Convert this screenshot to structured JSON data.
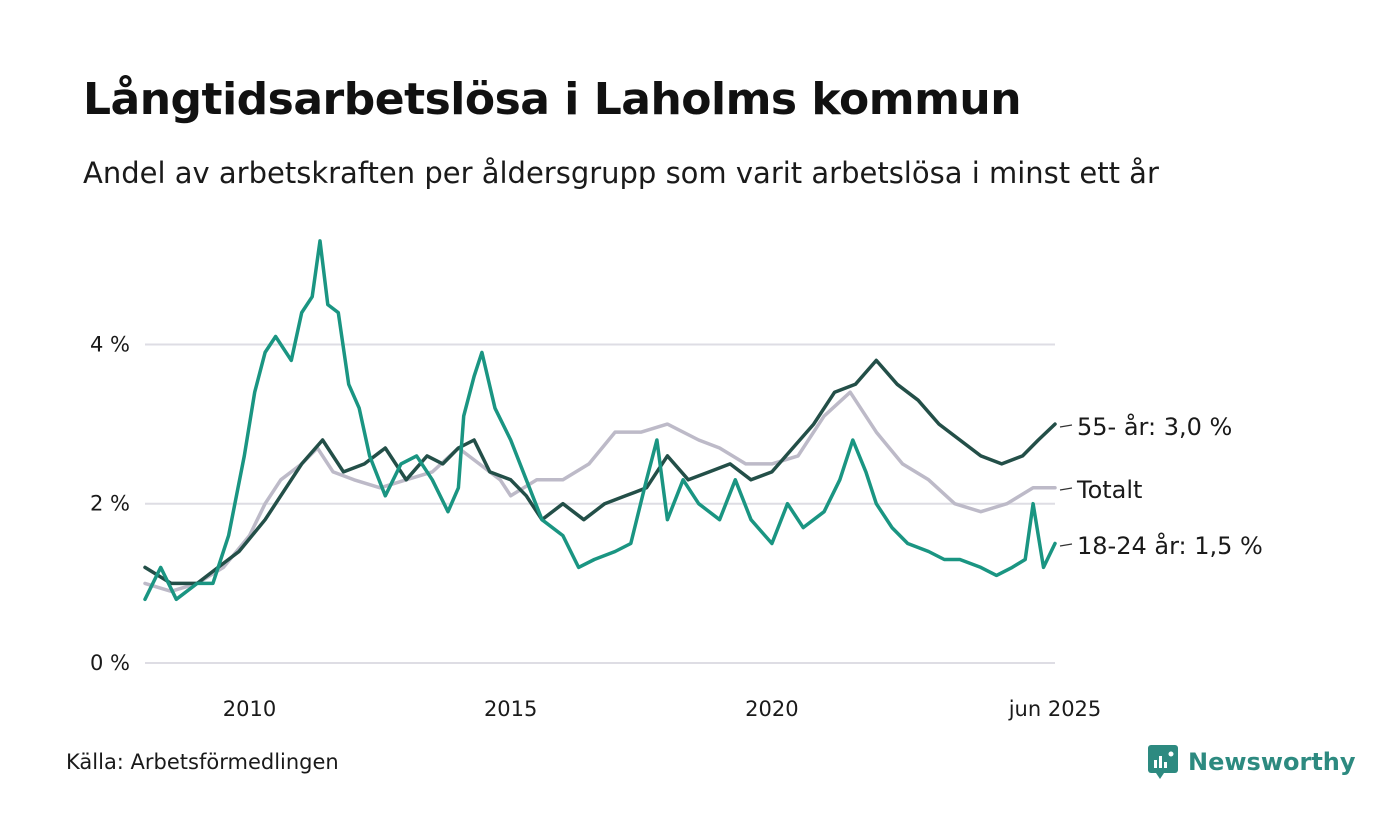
{
  "header": {
    "title": "Långtidsarbetslösa i Laholms kommun",
    "subtitle": "Andel av arbetskraften per åldersgrupp som varit arbetslösa i minst ett år"
  },
  "footer": {
    "source": "Källa: Arbetsförmedlingen",
    "brand": "Newsworthy"
  },
  "chart_data": {
    "type": "line",
    "x_start": 2008.0,
    "x_end": 2025.42,
    "ylim": [
      0,
      5.5
    ],
    "y_ticks": [
      {
        "value": 0,
        "label": "0 %"
      },
      {
        "value": 2,
        "label": "2 %"
      },
      {
        "value": 4,
        "label": "4 %"
      }
    ],
    "x_ticks": [
      {
        "value": 2010,
        "label": "2010"
      },
      {
        "value": 2015,
        "label": "2015"
      },
      {
        "value": 2020,
        "label": "2020"
      },
      {
        "value": 2025.42,
        "label": "jun 2025"
      }
    ],
    "grid": true,
    "series": [
      {
        "name": "Totalt",
        "label": "Totalt",
        "color": "#bdbac8",
        "points": [
          [
            2008.0,
            1.0
          ],
          [
            2008.5,
            0.9
          ],
          [
            2009.0,
            1.0
          ],
          [
            2009.5,
            1.2
          ],
          [
            2010.0,
            1.6
          ],
          [
            2010.3,
            2.0
          ],
          [
            2010.6,
            2.3
          ],
          [
            2011.0,
            2.5
          ],
          [
            2011.3,
            2.7
          ],
          [
            2011.6,
            2.4
          ],
          [
            2012.0,
            2.3
          ],
          [
            2012.5,
            2.2
          ],
          [
            2013.0,
            2.3
          ],
          [
            2013.5,
            2.4
          ],
          [
            2014.0,
            2.7
          ],
          [
            2014.4,
            2.5
          ],
          [
            2014.8,
            2.3
          ],
          [
            2015.0,
            2.1
          ],
          [
            2015.5,
            2.3
          ],
          [
            2016.0,
            2.3
          ],
          [
            2016.5,
            2.5
          ],
          [
            2017.0,
            2.9
          ],
          [
            2017.5,
            2.9
          ],
          [
            2018.0,
            3.0
          ],
          [
            2018.6,
            2.8
          ],
          [
            2019.0,
            2.7
          ],
          [
            2019.5,
            2.5
          ],
          [
            2020.0,
            2.5
          ],
          [
            2020.5,
            2.6
          ],
          [
            2021.0,
            3.1
          ],
          [
            2021.5,
            3.4
          ],
          [
            2022.0,
            2.9
          ],
          [
            2022.5,
            2.5
          ],
          [
            2023.0,
            2.3
          ],
          [
            2023.5,
            2.0
          ],
          [
            2024.0,
            1.9
          ],
          [
            2024.5,
            2.0
          ],
          [
            2025.0,
            2.2
          ],
          [
            2025.42,
            2.2
          ]
        ]
      },
      {
        "name": "55- år",
        "label": "55- år: 3,0 %",
        "color": "#234f48",
        "points": [
          [
            2008.0,
            1.2
          ],
          [
            2008.5,
            1.0
          ],
          [
            2009.0,
            1.0
          ],
          [
            2009.4,
            1.2
          ],
          [
            2009.8,
            1.4
          ],
          [
            2010.3,
            1.8
          ],
          [
            2010.7,
            2.2
          ],
          [
            2011.0,
            2.5
          ],
          [
            2011.4,
            2.8
          ],
          [
            2011.8,
            2.4
          ],
          [
            2012.2,
            2.5
          ],
          [
            2012.6,
            2.7
          ],
          [
            2013.0,
            2.3
          ],
          [
            2013.4,
            2.6
          ],
          [
            2013.7,
            2.5
          ],
          [
            2014.0,
            2.7
          ],
          [
            2014.3,
            2.8
          ],
          [
            2014.6,
            2.4
          ],
          [
            2015.0,
            2.3
          ],
          [
            2015.3,
            2.1
          ],
          [
            2015.6,
            1.8
          ],
          [
            2016.0,
            2.0
          ],
          [
            2016.4,
            1.8
          ],
          [
            2016.8,
            2.0
          ],
          [
            2017.2,
            2.1
          ],
          [
            2017.6,
            2.2
          ],
          [
            2018.0,
            2.6
          ],
          [
            2018.4,
            2.3
          ],
          [
            2018.8,
            2.4
          ],
          [
            2019.2,
            2.5
          ],
          [
            2019.6,
            2.3
          ],
          [
            2020.0,
            2.4
          ],
          [
            2020.4,
            2.7
          ],
          [
            2020.8,
            3.0
          ],
          [
            2021.2,
            3.4
          ],
          [
            2021.6,
            3.5
          ],
          [
            2022.0,
            3.8
          ],
          [
            2022.4,
            3.5
          ],
          [
            2022.8,
            3.3
          ],
          [
            2023.2,
            3.0
          ],
          [
            2023.6,
            2.8
          ],
          [
            2024.0,
            2.6
          ],
          [
            2024.4,
            2.5
          ],
          [
            2024.8,
            2.6
          ],
          [
            2025.1,
            2.8
          ],
          [
            2025.42,
            3.0
          ]
        ]
      },
      {
        "name": "18-24 år",
        "label": "18-24 år: 1,5 %",
        "color": "#1a9582",
        "points": [
          [
            2008.0,
            0.8
          ],
          [
            2008.3,
            1.2
          ],
          [
            2008.6,
            0.8
          ],
          [
            2009.0,
            1.0
          ],
          [
            2009.3,
            1.0
          ],
          [
            2009.6,
            1.6
          ],
          [
            2009.9,
            2.6
          ],
          [
            2010.1,
            3.4
          ],
          [
            2010.3,
            3.9
          ],
          [
            2010.5,
            4.1
          ],
          [
            2010.8,
            3.8
          ],
          [
            2011.0,
            4.4
          ],
          [
            2011.2,
            4.6
          ],
          [
            2011.35,
            5.3
          ],
          [
            2011.5,
            4.5
          ],
          [
            2011.7,
            4.4
          ],
          [
            2011.9,
            3.5
          ],
          [
            2012.1,
            3.2
          ],
          [
            2012.3,
            2.6
          ],
          [
            2012.6,
            2.1
          ],
          [
            2012.9,
            2.5
          ],
          [
            2013.2,
            2.6
          ],
          [
            2013.5,
            2.3
          ],
          [
            2013.8,
            1.9
          ],
          [
            2014.0,
            2.2
          ],
          [
            2014.1,
            3.1
          ],
          [
            2014.3,
            3.6
          ],
          [
            2014.45,
            3.9
          ],
          [
            2014.7,
            3.2
          ],
          [
            2015.0,
            2.8
          ],
          [
            2015.3,
            2.3
          ],
          [
            2015.6,
            1.8
          ],
          [
            2016.0,
            1.6
          ],
          [
            2016.3,
            1.2
          ],
          [
            2016.6,
            1.3
          ],
          [
            2017.0,
            1.4
          ],
          [
            2017.3,
            1.5
          ],
          [
            2017.6,
            2.3
          ],
          [
            2017.8,
            2.8
          ],
          [
            2018.0,
            1.8
          ],
          [
            2018.3,
            2.3
          ],
          [
            2018.6,
            2.0
          ],
          [
            2019.0,
            1.8
          ],
          [
            2019.3,
            2.3
          ],
          [
            2019.6,
            1.8
          ],
          [
            2020.0,
            1.5
          ],
          [
            2020.3,
            2.0
          ],
          [
            2020.6,
            1.7
          ],
          [
            2021.0,
            1.9
          ],
          [
            2021.3,
            2.3
          ],
          [
            2021.55,
            2.8
          ],
          [
            2021.8,
            2.4
          ],
          [
            2022.0,
            2.0
          ],
          [
            2022.3,
            1.7
          ],
          [
            2022.6,
            1.5
          ],
          [
            2023.0,
            1.4
          ],
          [
            2023.3,
            1.3
          ],
          [
            2023.6,
            1.3
          ],
          [
            2024.0,
            1.2
          ],
          [
            2024.3,
            1.1
          ],
          [
            2024.6,
            1.2
          ],
          [
            2024.85,
            1.3
          ],
          [
            2025.0,
            2.0
          ],
          [
            2025.2,
            1.2
          ],
          [
            2025.42,
            1.5
          ]
        ]
      }
    ]
  }
}
